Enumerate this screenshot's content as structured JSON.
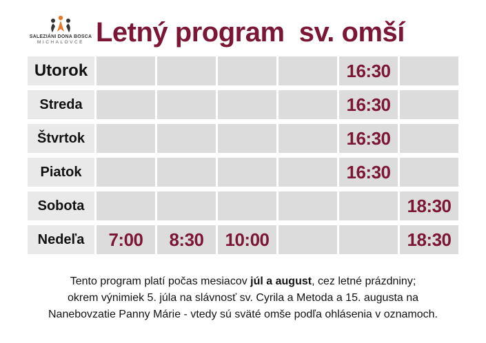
{
  "logo": {
    "line1": "SALEZIÁNI DONA BOSCA",
    "line2": "MICHALOVCE"
  },
  "title": "Letný program  sv. omší",
  "colors": {
    "accent": "#7b1735",
    "cell_bg": "#dcdcdc",
    "day_bg": "#e9e9e9"
  },
  "schedule": [
    {
      "day": "Utorok",
      "times": [
        "",
        "",
        "",
        "",
        "16:30",
        ""
      ]
    },
    {
      "day": "Streda",
      "times": [
        "",
        "",
        "",
        "",
        "16:30",
        ""
      ]
    },
    {
      "day": "Štvrtok",
      "times": [
        "",
        "",
        "",
        "",
        "16:30",
        ""
      ]
    },
    {
      "day": "Piatok",
      "times": [
        "",
        "",
        "",
        "",
        "16:30",
        ""
      ]
    },
    {
      "day": "Sobota",
      "times": [
        "",
        "",
        "",
        "",
        "",
        "18:30"
      ]
    },
    {
      "day": "Nedeľa",
      "times": [
        "7:00",
        "8:30",
        "10:00",
        "",
        "",
        "18:30"
      ]
    }
  ],
  "note": {
    "line1_start": "Tento program platí počas mesiacov ",
    "line1_bold": "júl a august",
    "line1_end": ", cez letné prázdniny;",
    "line2": "okrem výnimiek 5. júla na slávnosť sv. Cyrila a Metoda a 15. augusta na",
    "line3": "Nanebovzatie Panny Márie - vtedy sú sväté omše podľa ohlásenia v oznamoch."
  }
}
